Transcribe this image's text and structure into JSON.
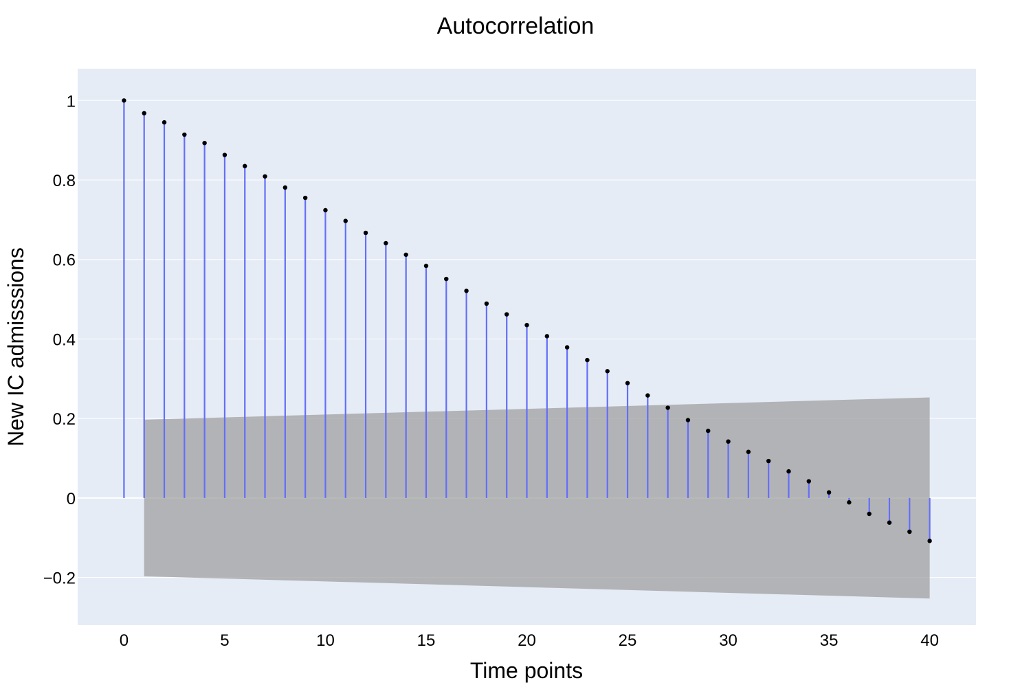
{
  "chart_data": {
    "type": "stem",
    "title": "Autocorrelation",
    "xlabel": "Time points",
    "ylabel": "New IC admisssions",
    "xlim": [
      -2.3,
      42.3
    ],
    "ylim": [
      -0.32,
      1.08
    ],
    "xticks": [
      0,
      5,
      10,
      15,
      20,
      25,
      30,
      35,
      40
    ],
    "xtick_labels": [
      "0",
      "5",
      "10",
      "15",
      "20",
      "25",
      "30",
      "35",
      "40"
    ],
    "yticks": [
      -0.2,
      0,
      0.2,
      0.4,
      0.6,
      0.8,
      1
    ],
    "ytick_labels": [
      "−0.2",
      "0",
      "0.2",
      "0.4",
      "0.6",
      "0.8",
      "1"
    ],
    "lags": [
      0,
      1,
      2,
      3,
      4,
      5,
      6,
      7,
      8,
      9,
      10,
      11,
      12,
      13,
      14,
      15,
      16,
      17,
      18,
      19,
      20,
      21,
      22,
      23,
      24,
      25,
      26,
      27,
      28,
      29,
      30,
      31,
      32,
      33,
      34,
      35,
      36,
      37,
      38,
      39,
      40
    ],
    "values": [
      1.0,
      0.968,
      0.945,
      0.914,
      0.893,
      0.863,
      0.835,
      0.809,
      0.781,
      0.755,
      0.724,
      0.697,
      0.667,
      0.641,
      0.612,
      0.584,
      0.551,
      0.521,
      0.489,
      0.462,
      0.435,
      0.407,
      0.379,
      0.347,
      0.319,
      0.289,
      0.258,
      0.227,
      0.196,
      0.169,
      0.142,
      0.116,
      0.093,
      0.067,
      0.042,
      0.014,
      -0.011,
      -0.04,
      -0.062,
      -0.085,
      -0.108
    ],
    "confidence_band": {
      "x": [
        1,
        40
      ],
      "upper": [
        0.197,
        0.253
      ],
      "lower": [
        -0.197,
        -0.253
      ]
    },
    "colors": {
      "plot_bg": "#e5ecf6",
      "grid": "#ffffff",
      "stem": "#636efa",
      "marker": "#000000",
      "band": "#a0a0a0"
    }
  }
}
